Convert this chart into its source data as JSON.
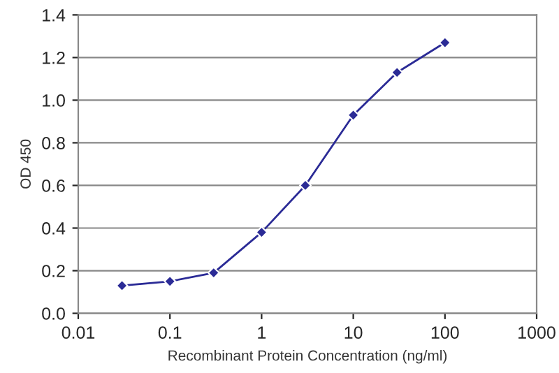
{
  "chart_data": {
    "type": "line",
    "xlabel": "Recombinant Protein Concentration (ng/ml)",
    "ylabel": "OD 450",
    "x": [
      0.03,
      0.1,
      0.3,
      1,
      3,
      10,
      30,
      100
    ],
    "series": [
      {
        "color": "#2b2b96",
        "values": [
          0.13,
          0.15,
          0.19,
          0.38,
          0.6,
          0.93,
          1.13,
          1.27
        ]
      }
    ],
    "log": "x",
    "xlim": [
      0.01,
      1000
    ],
    "xticks": [
      0.01,
      0.1,
      1,
      10,
      100,
      1000
    ],
    "ylim": [
      0.0,
      1.4
    ],
    "yticks": [
      {
        "value": 0,
        "label": "0.0"
      },
      0.2,
      0.4,
      0.6,
      0.8,
      {
        "value": 1,
        "label": "1.0"
      },
      1.2,
      1.4
    ],
    "grid": "y",
    "marker": "diamond",
    "line_style": "solid",
    "legend": false
  }
}
